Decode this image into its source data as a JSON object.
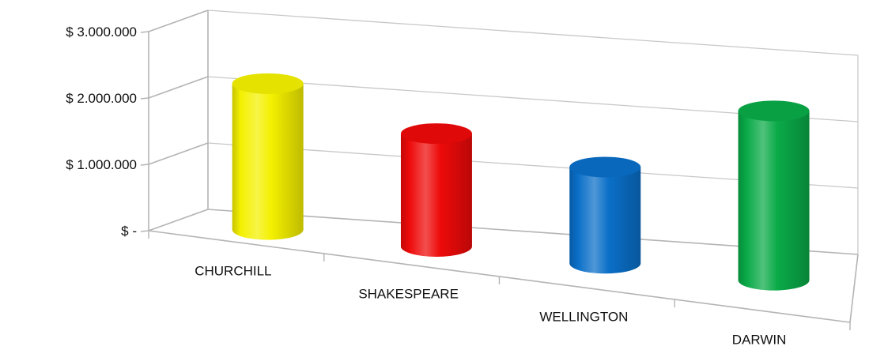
{
  "chart_data": {
    "type": "bar",
    "style": "3d-cylinder",
    "title": "",
    "xlabel": "",
    "ylabel": "",
    "categories": [
      "CHURCHILL",
      "SHAKESPEARE",
      "WELLINGTON",
      "DARWIN"
    ],
    "values": [
      2200000,
      1700000,
      1450000,
      2550000
    ],
    "colors": [
      "#f4f000",
      "#ee0a0a",
      "#0a6fc8",
      "#0aaa48"
    ],
    "ylim": [
      0,
      3000000
    ],
    "yticks": [
      0,
      1000000,
      2000000,
      3000000
    ],
    "ytick_labels": [
      "$ -",
      "$ 1.000.000",
      "$ 2.000.000",
      "$ 3.000.000"
    ],
    "grid": true,
    "legend": "none"
  }
}
